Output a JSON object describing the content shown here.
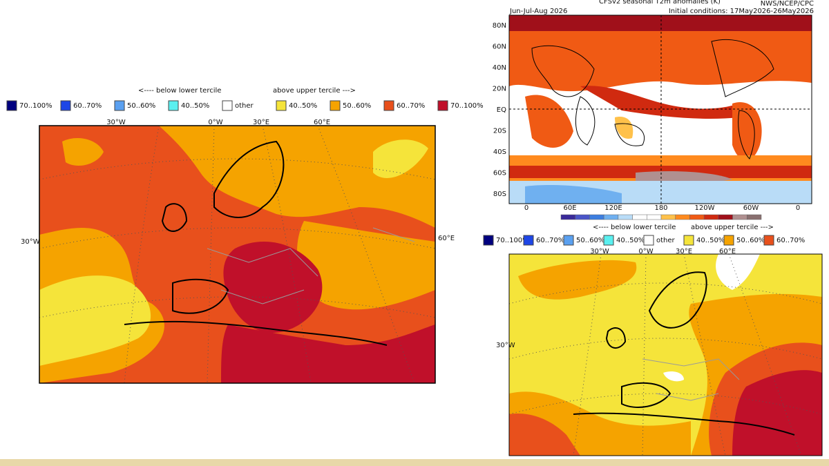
{
  "left_panel": {
    "legend": {
      "below_label": "<---- below lower tercile",
      "above_label": "above upper tercile --->",
      "items": [
        {
          "label": "70..100%",
          "color": "#00007f"
        },
        {
          "label": "60..70%",
          "color": "#1e46e6"
        },
        {
          "label": "50..60%",
          "color": "#5aa0f0"
        },
        {
          "label": "40..50%",
          "color": "#5af0f0"
        },
        {
          "label": "other",
          "color": "#ffffff"
        },
        {
          "label": "40..50%",
          "color": "#f5e43a"
        },
        {
          "label": "50..60%",
          "color": "#f5a300"
        },
        {
          "label": "60..70%",
          "color": "#e8501c"
        },
        {
          "label": "70..100%",
          "color": "#c0102a"
        }
      ]
    },
    "lon_labels": [
      "30°W",
      "0°W",
      "30°E",
      "60°E"
    ],
    "side_labels": [
      "30°W",
      "60°E"
    ]
  },
  "top_right": {
    "title": "CFSv2 seasonal T2m anomalies (K)",
    "season": "Jun-Jul-Aug 2026",
    "source": "NWS/NCEP/CPC",
    "initial": "Initial conditions: 17May2026-26May2026",
    "lat_labels": [
      "80N",
      "60N",
      "40N",
      "20N",
      "EQ",
      "20S",
      "40S",
      "60S",
      "80S"
    ],
    "lon_labels": [
      "0",
      "60E",
      "120E",
      "180",
      "120W",
      "60W",
      "0"
    ],
    "colorbar": [
      "#3a2a9a",
      "#4a55c8",
      "#3c7ee0",
      "#6fb0f0",
      "#b9dcf7",
      "#ffffff",
      "#ffffff",
      "#ffc14a",
      "#ff8a1e",
      "#f05a14",
      "#d02a10",
      "#a0101a",
      "#b09090",
      "#8a7070"
    ]
  },
  "bottom_right": {
    "legend": {
      "below_label": "<---- below lower tercile",
      "above_label": "above upper tercile --->",
      "items": [
        {
          "label": "70..100%",
          "color": "#00007f"
        },
        {
          "label": "60..70%",
          "color": "#1e46e6"
        },
        {
          "label": "50..60%",
          "color": "#5aa0f0"
        },
        {
          "label": "40..50%",
          "color": "#5af0f0"
        },
        {
          "label": "other",
          "color": "#ffffff"
        },
        {
          "label": "40..50%",
          "color": "#f5e43a"
        },
        {
          "label": "50..60%",
          "color": "#f5a300"
        },
        {
          "label": "60..70%",
          "color": "#e8501c"
        }
      ]
    },
    "lon_labels": [
      "30°W",
      "0°W",
      "30°E",
      "60°E"
    ],
    "side_labels": [
      "30°W"
    ]
  }
}
